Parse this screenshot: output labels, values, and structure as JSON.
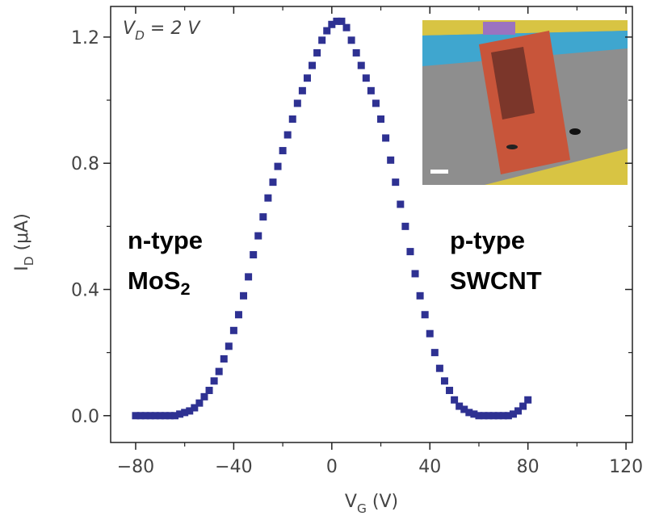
{
  "chart_data": {
    "type": "scatter",
    "annotation": {
      "main": "V",
      "sub": "D",
      "rest": " = 2 V"
    },
    "xlabel": {
      "main": "V",
      "sub": "G",
      "rest": " (V)"
    },
    "ylabel": {
      "main": "I",
      "sub": "D",
      "rest": " (μA)"
    },
    "left_label": [
      "n-type",
      {
        "main": "MoS",
        "sub": "2"
      }
    ],
    "right_label": [
      "p-type",
      "SWCNT"
    ],
    "xlim": [
      -90.2,
      122.6
    ],
    "ylim": [
      -0.085,
      1.297
    ],
    "xticks": [
      {
        "value": -80,
        "label": "−80"
      },
      {
        "value": -40,
        "label": "−40"
      },
      0,
      40,
      80,
      120
    ],
    "xminorticks": [
      -60,
      -20,
      20,
      60,
      100
    ],
    "yticks": [
      {
        "value": 0,
        "label": "0.0"
      },
      0.4,
      0.8,
      1.2
    ],
    "yminorticks": [
      0.2,
      0.6,
      1.0
    ],
    "x": [
      -80,
      -78,
      -76,
      -74,
      -72,
      -70,
      -68,
      -66,
      -64,
      -62,
      -60,
      -58,
      -56,
      -54,
      -52,
      -50,
      -48,
      -46,
      -44,
      -42,
      -40,
      -38,
      -36,
      -34,
      -32,
      -30,
      -28,
      -26,
      -24,
      -22,
      -20,
      -18,
      -16,
      -14,
      -12,
      -10,
      -8,
      -6,
      -4,
      -2,
      0,
      2,
      4,
      6,
      8,
      10,
      12,
      14,
      16,
      18,
      20,
      22,
      24,
      26,
      28,
      30,
      32,
      34,
      36,
      38,
      40,
      42,
      44,
      46,
      48,
      50,
      52,
      54,
      56,
      58,
      60,
      62,
      64,
      66,
      68,
      70,
      72,
      74,
      76,
      78,
      80
    ],
    "series": [
      {
        "color": "#2e3192",
        "values": [
          0,
          0,
          0,
          0,
          0,
          0,
          0,
          0,
          0,
          0.005,
          0.01,
          0.015,
          0.025,
          0.04,
          0.06,
          0.08,
          0.11,
          0.14,
          0.18,
          0.22,
          0.27,
          0.32,
          0.38,
          0.44,
          0.51,
          0.57,
          0.63,
          0.69,
          0.74,
          0.79,
          0.84,
          0.89,
          0.94,
          0.99,
          1.03,
          1.07,
          1.11,
          1.15,
          1.19,
          1.22,
          1.24,
          1.25,
          1.25,
          1.23,
          1.19,
          1.15,
          1.11,
          1.07,
          1.03,
          0.99,
          0.94,
          0.88,
          0.81,
          0.74,
          0.67,
          0.6,
          0.52,
          0.45,
          0.38,
          0.32,
          0.26,
          0.2,
          0.15,
          0.11,
          0.08,
          0.05,
          0.03,
          0.02,
          0.01,
          0.005,
          0,
          0,
          0,
          0,
          0,
          0,
          0,
          0.005,
          0.015,
          0.03,
          0.05
        ]
      }
    ]
  }
}
